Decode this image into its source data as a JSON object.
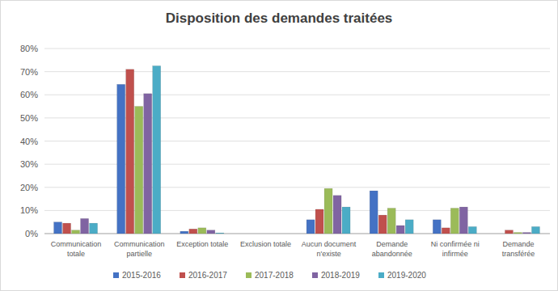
{
  "chart_data": {
    "type": "bar",
    "title": "Disposition des demandes traitées",
    "categories": [
      "Communication totale",
      "Communication partielle",
      "Exception totale",
      "Exclusion totale",
      "Aucun document n'existe",
      "Demande abandonnée",
      "Ni confirmée ni infirmée",
      "Demande transférée"
    ],
    "series": [
      {
        "name": "2015-2016",
        "color": "#4472c4",
        "values": [
          5,
          64.5,
          1,
          0,
          6,
          18.5,
          6,
          0
        ]
      },
      {
        "name": "2016-2017",
        "color": "#c0504d",
        "values": [
          4.5,
          71,
          2,
          0,
          10.5,
          8,
          2.5,
          1.5
        ]
      },
      {
        "name": "2017-2018",
        "color": "#9bbb59",
        "values": [
          1.5,
          55,
          2.5,
          0,
          19.5,
          11,
          11,
          0.5
        ]
      },
      {
        "name": "2018-2019",
        "color": "#8064a2",
        "values": [
          6.5,
          60.5,
          1.5,
          0,
          16.5,
          3.5,
          11.5,
          0.5
        ]
      },
      {
        "name": "2019-2020",
        "color": "#4bacc6",
        "values": [
          4.5,
          72.5,
          0.3,
          0,
          11.5,
          6,
          3,
          3
        ]
      }
    ],
    "ylim": [
      0,
      80
    ],
    "yticks": [
      {
        "value": 0,
        "label": "0%"
      },
      {
        "value": 10,
        "label": "10%"
      },
      {
        "value": 20,
        "label": "20%"
      },
      {
        "value": 30,
        "label": "30%"
      },
      {
        "value": 40,
        "label": "40%"
      },
      {
        "value": 50,
        "label": "50%"
      },
      {
        "value": 60,
        "label": "60%"
      },
      {
        "value": 70,
        "label": "70%"
      },
      {
        "value": 80,
        "label": "80%"
      }
    ],
    "grid": true,
    "legend": "bottom"
  }
}
